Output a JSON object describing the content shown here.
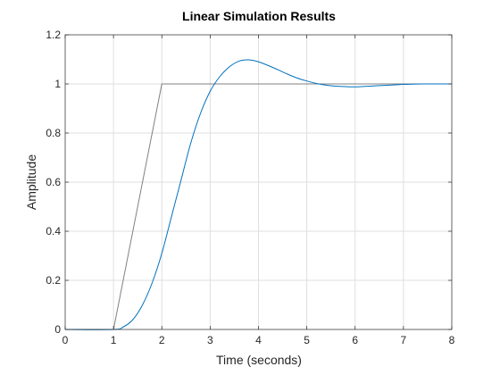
{
  "chart_data": {
    "type": "line",
    "title": "Linear Simulation Results",
    "xlabel": "Time (seconds)",
    "ylabel": "Amplitude",
    "xlim": [
      0,
      8
    ],
    "ylim": [
      0,
      1.2
    ],
    "xticks": [
      "0",
      "1",
      "2",
      "3",
      "4",
      "5",
      "6",
      "7",
      "8"
    ],
    "yticks": [
      "0",
      "0.2",
      "0.4",
      "0.6",
      "0.8",
      "1",
      "1.2"
    ],
    "xtick_values": [
      0,
      1,
      2,
      3,
      4,
      5,
      6,
      7,
      8
    ],
    "ytick_values": [
      0,
      0.2,
      0.4,
      0.6,
      0.8,
      1.0,
      1.2
    ],
    "grid": true,
    "series": [
      {
        "color": "#808080",
        "x": [
          0,
          1,
          2,
          8
        ],
        "y": [
          0,
          0,
          1,
          1
        ]
      },
      {
        "color": "#0072BD",
        "x": [
          0,
          1.0,
          1.2,
          1.4,
          1.6,
          1.8,
          2.0,
          2.2,
          2.4,
          2.6,
          2.8,
          3.0,
          3.2,
          3.4,
          3.6,
          3.8,
          4.0,
          4.2,
          4.4,
          4.6,
          4.8,
          5.0,
          5.2,
          5.4,
          5.6,
          5.8,
          6.0,
          6.2,
          6.4,
          6.6,
          6.8,
          7.0,
          7.2,
          7.4,
          7.6,
          7.8,
          8.0
        ],
        "y": [
          0,
          0,
          0.01,
          0.04,
          0.1,
          0.19,
          0.31,
          0.46,
          0.61,
          0.76,
          0.88,
          0.97,
          1.03,
          1.07,
          1.093,
          1.098,
          1.09,
          1.075,
          1.058,
          1.04,
          1.024,
          1.012,
          1.002,
          0.995,
          0.991,
          0.989,
          0.988,
          0.99,
          0.992,
          0.994,
          0.996,
          0.998,
          0.999,
          1.0,
          1.0,
          1.0,
          1.0
        ]
      }
    ]
  }
}
